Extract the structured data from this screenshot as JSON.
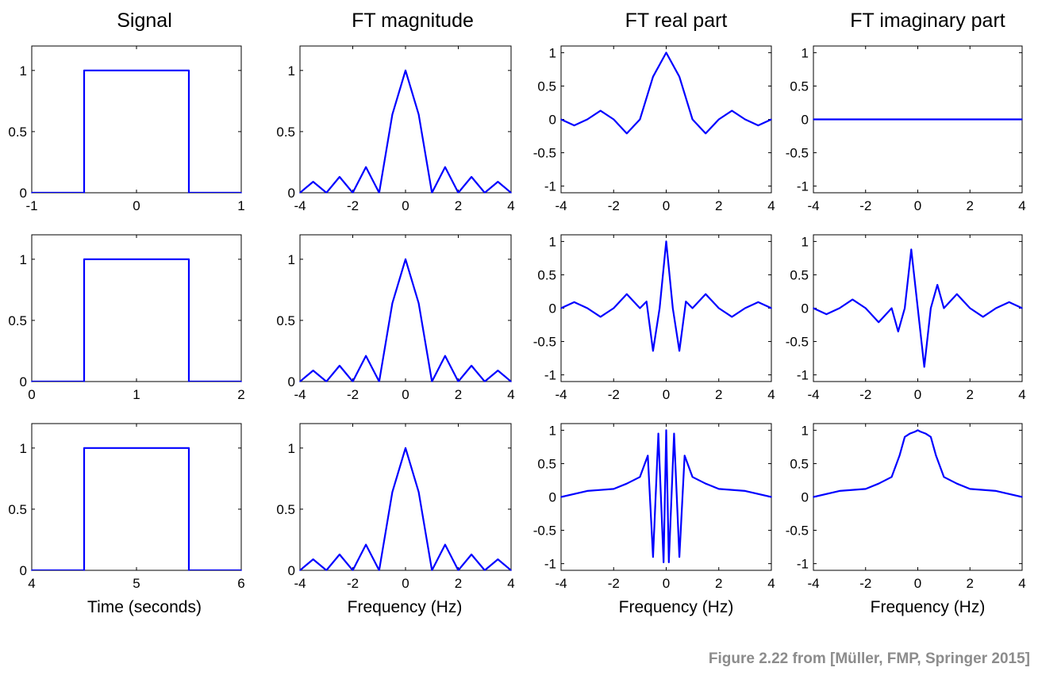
{
  "caption": "Figure 2.22 from [Müller, FMP, Springer 2015]",
  "line_color": "#0000ff",
  "column_titles": [
    "Signal",
    "FT magnitude",
    "FT real part",
    "FT imaginary part"
  ],
  "column_xlabels": [
    "Time (seconds)",
    "Frequency (Hz)",
    "Frequency (Hz)",
    "Frequency (Hz)"
  ],
  "chart_data": [
    {
      "type": "line",
      "row": 0,
      "col": 0,
      "title": "Signal",
      "xlabel": "",
      "xlim": [
        -1,
        1
      ],
      "ylim": [
        0,
        1.2
      ],
      "xticks": [
        -1,
        0,
        1
      ],
      "yticks": [
        0,
        0.5,
        1
      ],
      "xtick_labels": [
        "-1",
        "0",
        "1"
      ],
      "ytick_labels": [
        "0",
        "0.5",
        "1"
      ],
      "series": [
        {
          "x": [
            -1,
            -0.5,
            -0.5,
            0.5,
            0.5,
            1
          ],
          "y": [
            0,
            0,
            1,
            1,
            0,
            0
          ]
        }
      ]
    },
    {
      "type": "line",
      "row": 0,
      "col": 1,
      "title": "FT magnitude",
      "xlabel": "",
      "xlim": [
        -4,
        4
      ],
      "ylim": [
        0,
        1.2
      ],
      "xticks": [
        -4,
        -2,
        0,
        2,
        4
      ],
      "yticks": [
        0,
        0.5,
        1
      ],
      "xtick_labels": [
        "-4",
        "-2",
        "0",
        "2",
        "4"
      ],
      "ytick_labels": [
        "0",
        "0.5",
        "1"
      ],
      "series": [
        {
          "x": [
            -4,
            -3.5,
            -3,
            -2.5,
            -2,
            -1.5,
            -1,
            -0.5,
            0,
            0.5,
            1,
            1.5,
            2,
            2.5,
            3,
            3.5,
            4
          ],
          "y": [
            0,
            0.09,
            0,
            0.13,
            0,
            0.21,
            0,
            0.64,
            1,
            0.64,
            0,
            0.21,
            0,
            0.13,
            0,
            0.09,
            0
          ]
        }
      ]
    },
    {
      "type": "line",
      "row": 0,
      "col": 2,
      "title": "FT real part",
      "xlabel": "",
      "xlim": [
        -4,
        4
      ],
      "ylim": [
        -1.1,
        1.1
      ],
      "xticks": [
        -4,
        -2,
        0,
        2,
        4
      ],
      "yticks": [
        -1,
        -0.5,
        0,
        0.5,
        1
      ],
      "xtick_labels": [
        "-4",
        "-2",
        "0",
        "2",
        "4"
      ],
      "ytick_labels": [
        "-1",
        "-0.5",
        "0",
        "0.5",
        "1"
      ],
      "series": [
        {
          "x": [
            -4,
            -3.5,
            -3,
            -2.5,
            -2,
            -1.5,
            -1,
            -0.5,
            0,
            0.5,
            1,
            1.5,
            2,
            2.5,
            3,
            3.5,
            4
          ],
          "y": [
            0,
            -0.09,
            0,
            0.13,
            0,
            -0.21,
            0,
            0.64,
            1,
            0.64,
            0,
            -0.21,
            0,
            0.13,
            0,
            -0.09,
            0
          ]
        }
      ]
    },
    {
      "type": "line",
      "row": 0,
      "col": 3,
      "title": "FT imaginary part",
      "xlabel": "",
      "xlim": [
        -4,
        4
      ],
      "ylim": [
        -1.1,
        1.1
      ],
      "xticks": [
        -4,
        -2,
        0,
        2,
        4
      ],
      "yticks": [
        -1,
        -0.5,
        0,
        0.5,
        1
      ],
      "xtick_labels": [
        "-4",
        "-2",
        "0",
        "2",
        "4"
      ],
      "ytick_labels": [
        "-1",
        "-0.5",
        "0",
        "0.5",
        "1"
      ],
      "series": [
        {
          "x": [
            -4,
            -2,
            0,
            2,
            4
          ],
          "y": [
            0,
            0,
            0,
            0,
            0
          ]
        }
      ]
    },
    {
      "type": "line",
      "row": 1,
      "col": 0,
      "title": "",
      "xlabel": "",
      "xlim": [
        0,
        2
      ],
      "ylim": [
        0,
        1.2
      ],
      "xticks": [
        0,
        1,
        2
      ],
      "yticks": [
        0,
        0.5,
        1
      ],
      "xtick_labels": [
        "0",
        "1",
        "2"
      ],
      "ytick_labels": [
        "0",
        "0.5",
        "1"
      ],
      "series": [
        {
          "x": [
            0,
            0.5,
            0.5,
            1.5,
            1.5,
            2
          ],
          "y": [
            0,
            0,
            1,
            1,
            0,
            0
          ]
        }
      ]
    },
    {
      "type": "line",
      "row": 1,
      "col": 1,
      "title": "",
      "xlabel": "",
      "xlim": [
        -4,
        4
      ],
      "ylim": [
        0,
        1.2
      ],
      "xticks": [
        -4,
        -2,
        0,
        2,
        4
      ],
      "yticks": [
        0,
        0.5,
        1
      ],
      "xtick_labels": [
        "-4",
        "-2",
        "0",
        "2",
        "4"
      ],
      "ytick_labels": [
        "0",
        "0.5",
        "1"
      ],
      "series": [
        {
          "x": [
            -4,
            -3.5,
            -3,
            -2.5,
            -2,
            -1.5,
            -1,
            -0.5,
            0,
            0.5,
            1,
            1.5,
            2,
            2.5,
            3,
            3.5,
            4
          ],
          "y": [
            0,
            0.09,
            0,
            0.13,
            0,
            0.21,
            0,
            0.64,
            1,
            0.64,
            0,
            0.21,
            0,
            0.13,
            0,
            0.09,
            0
          ]
        }
      ]
    },
    {
      "type": "line",
      "row": 1,
      "col": 2,
      "title": "",
      "xlabel": "",
      "xlim": [
        -4,
        4
      ],
      "ylim": [
        -1.1,
        1.1
      ],
      "xticks": [
        -4,
        -2,
        0,
        2,
        4
      ],
      "yticks": [
        -1,
        -0.5,
        0,
        0.5,
        1
      ],
      "xtick_labels": [
        "-4",
        "-2",
        "0",
        "2",
        "4"
      ],
      "ytick_labels": [
        "-1",
        "-0.5",
        "0",
        "0.5",
        "1"
      ],
      "series": [
        {
          "x": [
            -4,
            -3.5,
            -3,
            -2.5,
            -2,
            -1.5,
            -1,
            -0.75,
            -0.5,
            -0.25,
            0,
            0.25,
            0.5,
            0.75,
            1,
            1.5,
            2,
            2.5,
            3,
            3.5,
            4
          ],
          "y": [
            0,
            0.09,
            0,
            -0.13,
            0,
            0.21,
            0,
            0.1,
            -0.64,
            0,
            1,
            0,
            -0.64,
            0.1,
            0,
            0.21,
            0,
            -0.13,
            0,
            0.09,
            0
          ]
        }
      ]
    },
    {
      "type": "line",
      "row": 1,
      "col": 3,
      "title": "",
      "xlabel": "",
      "xlim": [
        -4,
        4
      ],
      "ylim": [
        -1.1,
        1.1
      ],
      "xticks": [
        -4,
        -2,
        0,
        2,
        4
      ],
      "yticks": [
        -1,
        -0.5,
        0,
        0.5,
        1
      ],
      "xtick_labels": [
        "-4",
        "-2",
        "0",
        "2",
        "4"
      ],
      "ytick_labels": [
        "-1",
        "-0.5",
        "0",
        "0.5",
        "1"
      ],
      "series": [
        {
          "x": [
            -4,
            -3.5,
            -3,
            -2.5,
            -2,
            -1.5,
            -1,
            -0.75,
            -0.5,
            -0.25,
            0,
            0.25,
            0.5,
            0.75,
            1,
            1.5,
            2,
            2.5,
            3,
            3.5,
            4
          ],
          "y": [
            0,
            -0.09,
            0,
            0.13,
            0,
            -0.21,
            0,
            -0.35,
            0,
            0.88,
            0,
            -0.88,
            0,
            0.35,
            0,
            0.21,
            0,
            -0.13,
            0,
            0.09,
            0
          ]
        }
      ]
    },
    {
      "type": "line",
      "row": 2,
      "col": 0,
      "title": "",
      "xlabel": "Time (seconds)",
      "xlim": [
        4,
        6
      ],
      "ylim": [
        0,
        1.2
      ],
      "xticks": [
        4,
        5,
        6
      ],
      "yticks": [
        0,
        0.5,
        1
      ],
      "xtick_labels": [
        "4",
        "5",
        "6"
      ],
      "ytick_labels": [
        "0",
        "0.5",
        "1"
      ],
      "series": [
        {
          "x": [
            4,
            4.5,
            4.5,
            5.5,
            5.5,
            6
          ],
          "y": [
            0,
            0,
            1,
            1,
            0,
            0
          ]
        }
      ]
    },
    {
      "type": "line",
      "row": 2,
      "col": 1,
      "title": "",
      "xlabel": "Frequency (Hz)",
      "xlim": [
        -4,
        4
      ],
      "ylim": [
        0,
        1.2
      ],
      "xticks": [
        -4,
        -2,
        0,
        2,
        4
      ],
      "yticks": [
        0,
        0.5,
        1
      ],
      "xtick_labels": [
        "-4",
        "-2",
        "0",
        "2",
        "4"
      ],
      "ytick_labels": [
        "0",
        "0.5",
        "1"
      ],
      "series": [
        {
          "x": [
            -4,
            -3.5,
            -3,
            -2.5,
            -2,
            -1.5,
            -1,
            -0.5,
            0,
            0.5,
            1,
            1.5,
            2,
            2.5,
            3,
            3.5,
            4
          ],
          "y": [
            0,
            0.09,
            0,
            0.13,
            0,
            0.21,
            0,
            0.64,
            1,
            0.64,
            0,
            0.21,
            0,
            0.13,
            0,
            0.09,
            0
          ]
        }
      ]
    },
    {
      "type": "line",
      "row": 2,
      "col": 2,
      "title": "",
      "xlabel": "Frequency (Hz)",
      "xlim": [
        -4,
        4
      ],
      "ylim": [
        -1.1,
        1.1
      ],
      "xticks": [
        -4,
        -2,
        0,
        2,
        4
      ],
      "yticks": [
        -1,
        -0.5,
        0,
        0.5,
        1
      ],
      "xtick_labels": [
        "-4",
        "-2",
        "0",
        "2",
        "4"
      ],
      "ytick_labels": [
        "-1",
        "-0.5",
        "0",
        "0.5",
        "1"
      ],
      "series": [
        {
          "x": [
            -4,
            -3,
            -2,
            -1.5,
            -1,
            -0.7,
            -0.5,
            -0.3,
            -0.1,
            0,
            0.1,
            0.3,
            0.5,
            0.7,
            1,
            1.5,
            2,
            3,
            4
          ],
          "y": [
            0,
            0.09,
            0.12,
            0.2,
            0.3,
            0.62,
            -0.9,
            0.95,
            -0.98,
            1,
            -0.98,
            0.95,
            -0.9,
            0.62,
            0.3,
            0.2,
            0.12,
            0.09,
            0
          ]
        }
      ]
    },
    {
      "type": "line",
      "row": 2,
      "col": 3,
      "title": "",
      "xlabel": "Frequency (Hz)",
      "xlim": [
        -4,
        4
      ],
      "ylim": [
        -1.1,
        1.1
      ],
      "xticks": [
        -4,
        -2,
        0,
        2,
        4
      ],
      "yticks": [
        -1,
        -0.5,
        0,
        0.5,
        1
      ],
      "xtick_labels": [
        "-4",
        "-2",
        "0",
        "2",
        "4"
      ],
      "ytick_labels": [
        "-1",
        "-0.5",
        "0",
        "0.5",
        "1"
      ],
      "series": [
        {
          "x": [
            -4,
            -3,
            -2,
            -1.5,
            -1,
            -0.7,
            -0.5,
            -0.3,
            -0.1,
            0,
            0.1,
            0.3,
            0.5,
            0.7,
            1,
            1.5,
            2,
            3,
            4
          ],
          "y": [
            0,
            0.09,
            0.12,
            0.2,
            0.3,
            0.62,
            0.9,
            0.95,
            0.98,
            1,
            0.98,
            0.95,
            0.9,
            0.62,
            0.3,
            0.2,
            0.12,
            0.09,
            0
          ]
        }
      ]
    }
  ]
}
